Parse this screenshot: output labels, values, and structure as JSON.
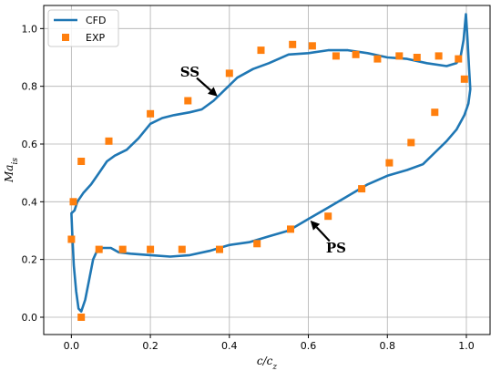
{
  "chart_data": {
    "type": "scatter",
    "xlabel": "c/c",
    "xlabel_sub": "z",
    "ylabel": "Ma",
    "ylabel_sub": "is",
    "xlim": [
      -0.07,
      1.06
    ],
    "ylim": [
      -0.06,
      1.08
    ],
    "xticks": [
      0.0,
      0.2,
      0.4,
      0.6,
      0.8,
      1.0
    ],
    "yticks": [
      0.0,
      0.2,
      0.4,
      0.6,
      0.8,
      1.0
    ],
    "xtick_labels": [
      "0.0",
      "0.2",
      "0.4",
      "0.6",
      "0.8",
      "1.0"
    ],
    "ytick_labels": [
      "0.0",
      "0.2",
      "0.4",
      "0.6",
      "0.8",
      "1.0"
    ],
    "grid": true,
    "legend_position": "top-left",
    "colors": {
      "cfd": "#1f77b4",
      "exp": "#ff7f0e"
    },
    "series": [
      {
        "name": "CFD",
        "type": "line",
        "points": [
          [
            0.008,
            0.37
          ],
          [
            0.015,
            0.4
          ],
          [
            0.03,
            0.43
          ],
          [
            0.05,
            0.46
          ],
          [
            0.07,
            0.5
          ],
          [
            0.09,
            0.54
          ],
          [
            0.11,
            0.56
          ],
          [
            0.14,
            0.58
          ],
          [
            0.17,
            0.62
          ],
          [
            0.2,
            0.67
          ],
          [
            0.23,
            0.69
          ],
          [
            0.26,
            0.7
          ],
          [
            0.3,
            0.71
          ],
          [
            0.33,
            0.72
          ],
          [
            0.36,
            0.75
          ],
          [
            0.39,
            0.79
          ],
          [
            0.42,
            0.83
          ],
          [
            0.46,
            0.86
          ],
          [
            0.5,
            0.88
          ],
          [
            0.55,
            0.91
          ],
          [
            0.6,
            0.915
          ],
          [
            0.65,
            0.925
          ],
          [
            0.7,
            0.925
          ],
          [
            0.75,
            0.915
          ],
          [
            0.8,
            0.9
          ],
          [
            0.85,
            0.895
          ],
          [
            0.9,
            0.88
          ],
          [
            0.95,
            0.87
          ],
          [
            0.975,
            0.88
          ],
          [
            0.985,
            0.9
          ],
          [
            0.993,
            0.96
          ],
          [
            0.999,
            1.05
          ],
          [
            1.003,
            0.96
          ],
          [
            1.007,
            0.86
          ],
          [
            1.01,
            0.79
          ],
          [
            1.005,
            0.74
          ],
          [
            0.995,
            0.7
          ],
          [
            0.975,
            0.65
          ],
          [
            0.95,
            0.61
          ],
          [
            0.92,
            0.57
          ],
          [
            0.89,
            0.53
          ],
          [
            0.85,
            0.51
          ],
          [
            0.8,
            0.49
          ],
          [
            0.75,
            0.46
          ],
          [
            0.7,
            0.42
          ],
          [
            0.65,
            0.38
          ],
          [
            0.6,
            0.34
          ],
          [
            0.55,
            0.3
          ],
          [
            0.5,
            0.28
          ],
          [
            0.45,
            0.26
          ],
          [
            0.4,
            0.25
          ],
          [
            0.35,
            0.23
          ],
          [
            0.3,
            0.215
          ],
          [
            0.25,
            0.21
          ],
          [
            0.2,
            0.215
          ],
          [
            0.15,
            0.22
          ],
          [
            0.12,
            0.225
          ],
          [
            0.1,
            0.24
          ],
          [
            0.08,
            0.24
          ],
          [
            0.065,
            0.23
          ],
          [
            0.055,
            0.2
          ],
          [
            0.045,
            0.13
          ],
          [
            0.035,
            0.06
          ],
          [
            0.025,
            0.02
          ],
          [
            0.018,
            0.03
          ],
          [
            0.012,
            0.09
          ],
          [
            0.006,
            0.18
          ],
          [
            0.002,
            0.3
          ],
          [
            0.0,
            0.36
          ],
          [
            0.008,
            0.37
          ]
        ]
      },
      {
        "name": "EXP",
        "type": "scatter",
        "points": [
          [
            0.005,
            0.4
          ],
          [
            0.025,
            0.54
          ],
          [
            0.095,
            0.61
          ],
          [
            0.2,
            0.705
          ],
          [
            0.295,
            0.75
          ],
          [
            0.4,
            0.845
          ],
          [
            0.48,
            0.925
          ],
          [
            0.56,
            0.945
          ],
          [
            0.61,
            0.94
          ],
          [
            0.67,
            0.905
          ],
          [
            0.72,
            0.91
          ],
          [
            0.775,
            0.895
          ],
          [
            0.83,
            0.905
          ],
          [
            0.875,
            0.9
          ],
          [
            0.93,
            0.905
          ],
          [
            0.98,
            0.895
          ],
          [
            0.995,
            0.825
          ],
          [
            0.92,
            0.71
          ],
          [
            0.86,
            0.605
          ],
          [
            0.805,
            0.535
          ],
          [
            0.735,
            0.445
          ],
          [
            0.65,
            0.35
          ],
          [
            0.555,
            0.305
          ],
          [
            0.47,
            0.255
          ],
          [
            0.375,
            0.235
          ],
          [
            0.28,
            0.235
          ],
          [
            0.2,
            0.235
          ],
          [
            0.13,
            0.235
          ],
          [
            0.07,
            0.235
          ],
          [
            0.0,
            0.27
          ],
          [
            0.025,
            0.0
          ]
        ]
      }
    ],
    "annotations": [
      {
        "text": "SS",
        "text_at": [
          0.3,
          0.85
        ],
        "arrow_to": [
          0.37,
          0.765
        ]
      },
      {
        "text": "PS",
        "text_at": [
          0.67,
          0.24
        ],
        "arrow_to": [
          0.605,
          0.335
        ]
      }
    ]
  }
}
